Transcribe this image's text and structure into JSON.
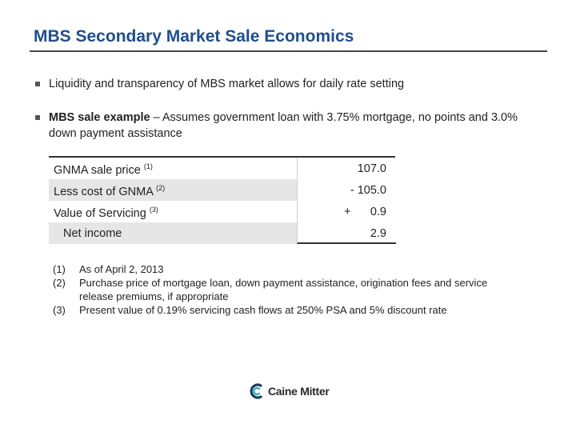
{
  "title": "MBS Secondary Market Sale Economics",
  "bullets": [
    {
      "text": "Liquidity and transparency of MBS market allows for daily rate setting"
    },
    {
      "bold": "MBS sale example",
      "text": " – Assumes government loan with 3.75% mortgage, no points and 3.0% down payment assistance"
    }
  ],
  "table": {
    "rows": [
      {
        "label": "GNMA sale price",
        "sup": "(1)",
        "sign": "",
        "value": "107.0"
      },
      {
        "label": "Less cost of GNMA",
        "sup": "(2)",
        "sign": "",
        "value": "- 105.0"
      },
      {
        "label": "Value of Servicing",
        "sup": "(3)",
        "sign": "+",
        "value": "0.9"
      },
      {
        "label": "Net income",
        "sup": "",
        "sign": "",
        "value": "2.9"
      }
    ]
  },
  "footnotes": [
    {
      "num": "(1)",
      "text": "As of April 2, 2013"
    },
    {
      "num": "(2)",
      "text": "Purchase price of mortgage loan, down payment assistance, origination fees and service release premiums, if appropriate"
    },
    {
      "num": "(3)",
      "text": "Present value of 0.19% servicing cash flows at 250% PSA and 5% discount rate"
    }
  ],
  "logo": {
    "text": "Caine Mitter",
    "icon": "caine-mitter-logo-icon",
    "color_dark": "#1a3d5c",
    "color_light": "#3aa7c9"
  }
}
